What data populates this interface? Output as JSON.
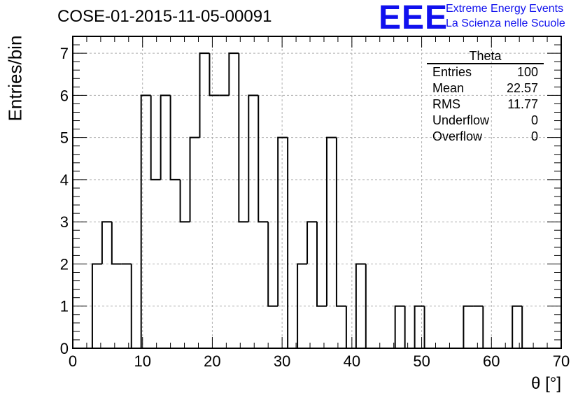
{
  "title": "COSE-01-2015-11-05-00091",
  "logo": {
    "mark": "EEE",
    "line1": "Extreme Energy Events",
    "line2": "La Scienza nelle Scuole",
    "color": "#1010ee"
  },
  "stats_box": {
    "name": "Theta",
    "rows": [
      {
        "label": "Entries",
        "value": "100"
      },
      {
        "label": "Mean",
        "value": "22.57"
      },
      {
        "label": "RMS",
        "value": "11.77"
      },
      {
        "label": "Underflow",
        "value": "0"
      },
      {
        "label": "Overflow",
        "value": "0"
      }
    ]
  },
  "chart_data": {
    "type": "bar",
    "style": "step-histogram",
    "xlabel": "θ [°]",
    "ylabel": "Entries/bin",
    "xlim": [
      0,
      70
    ],
    "ylim": [
      0,
      7.4
    ],
    "bin_width": 1.4,
    "grid": true,
    "x_ticks": [
      0,
      10,
      20,
      30,
      40,
      50,
      60,
      70
    ],
    "y_ticks": [
      0,
      1,
      2,
      3,
      4,
      5,
      6,
      7
    ],
    "bin_edges_start": [
      0.0,
      1.4,
      2.8,
      4.2,
      5.6,
      7.0,
      8.4,
      9.8,
      11.2,
      12.6,
      14.0,
      15.4,
      16.8,
      18.2,
      19.6,
      21.0,
      22.4,
      23.8,
      25.2,
      26.6,
      28.0,
      29.4,
      30.8,
      32.2,
      33.6,
      35.0,
      36.4,
      37.8,
      39.2,
      40.6,
      42.0,
      43.4,
      44.8,
      46.2,
      47.6,
      49.0,
      50.4,
      51.8,
      53.2,
      54.6,
      56.0,
      57.4,
      58.8,
      60.2,
      61.6,
      63.0,
      64.4,
      65.8,
      67.2,
      68.6
    ],
    "values": [
      0,
      0,
      2,
      3,
      2,
      2,
      0,
      6,
      4,
      6,
      4,
      3,
      5,
      7,
      6,
      6,
      7,
      3,
      6,
      3,
      1,
      5,
      0,
      2,
      3,
      1,
      5,
      1,
      0,
      2,
      0,
      0,
      0,
      1,
      0,
      1,
      0,
      0,
      0,
      0,
      1,
      1,
      0,
      0,
      0,
      1,
      0,
      0,
      0,
      0
    ],
    "line_color": "#000000",
    "grid_color": "#b0b0b0"
  }
}
